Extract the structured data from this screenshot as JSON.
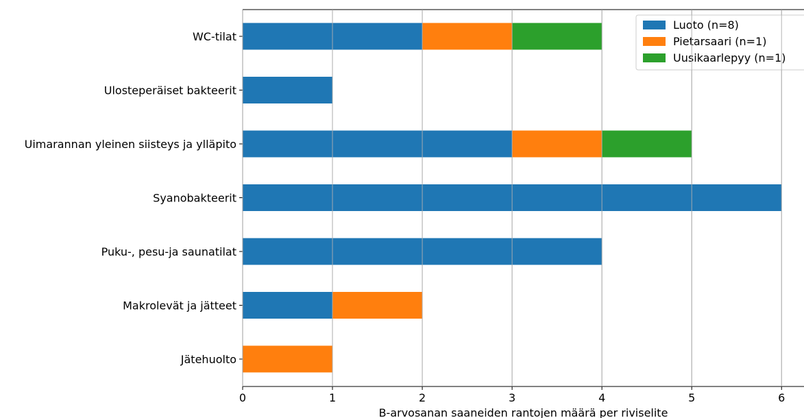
{
  "chart_data": {
    "type": "bar",
    "orientation": "horizontal",
    "stacked": true,
    "categories": [
      "WC-tilat",
      "Ulosteperäiset bakteerit",
      "Uimarannan yleinen siisteys ja ylläpito",
      "Syanobakteerit",
      "Puku-, pesu-ja saunatilat",
      "Makrolevät ja jätteet",
      "Jätehuolto"
    ],
    "series": [
      {
        "name": "Luoto (n=8)",
        "color": "#1f77b4",
        "values": [
          2,
          1,
          3,
          6,
          4,
          1,
          0
        ]
      },
      {
        "name": "Pietarsaari (n=1)",
        "color": "#ff7f0e",
        "values": [
          1,
          0,
          1,
          0,
          0,
          1,
          1
        ]
      },
      {
        "name": "Uusikaarlepyy (n=1)",
        "color": "#2ca02c",
        "values": [
          1,
          0,
          1,
          0,
          0,
          0,
          0
        ]
      }
    ],
    "xlabel": "B-arvosanan saaneiden rantojen määrä per riviselite",
    "ylabel": "",
    "xlim": [
      0,
      6.25
    ],
    "xticks": [
      0,
      1,
      2,
      3,
      4,
      5,
      6
    ],
    "grid": "x",
    "legend_position": "top-right"
  }
}
